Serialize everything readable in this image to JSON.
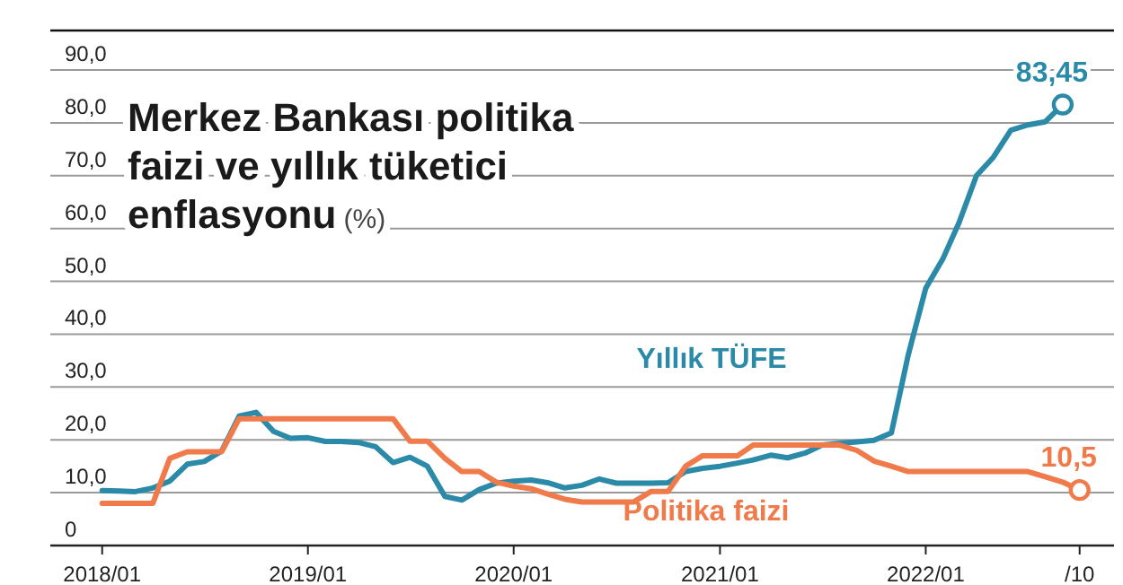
{
  "chart_data": {
    "type": "line",
    "title": "Merkez Bankası politika faizi ve yıllık tüketici enflasyonu",
    "subtitle": "(%)",
    "x": [
      "2018-01",
      "2018-02",
      "2018-03",
      "2018-04",
      "2018-05",
      "2018-06",
      "2018-07",
      "2018-08",
      "2018-09",
      "2018-10",
      "2018-11",
      "2018-12",
      "2019-01",
      "2019-02",
      "2019-03",
      "2019-04",
      "2019-05",
      "2019-06",
      "2019-07",
      "2019-08",
      "2019-09",
      "2019-10",
      "2019-11",
      "2019-12",
      "2020-01",
      "2020-02",
      "2020-03",
      "2020-04",
      "2020-05",
      "2020-06",
      "2020-07",
      "2020-08",
      "2020-09",
      "2020-10",
      "2020-11",
      "2020-12",
      "2021-01",
      "2021-02",
      "2021-03",
      "2021-04",
      "2021-05",
      "2021-06",
      "2021-07",
      "2021-08",
      "2021-09",
      "2021-10",
      "2021-11",
      "2021-12",
      "2022-01",
      "2022-02",
      "2022-03",
      "2022-04",
      "2022-05",
      "2022-06",
      "2022-07",
      "2022-08",
      "2022-09",
      "2022-10"
    ],
    "series": [
      {
        "name": "Yıllık TÜFE",
        "color": "#2a8aa8",
        "values": [
          10.4,
          10.3,
          10.2,
          10.9,
          12.2,
          15.4,
          15.9,
          17.9,
          24.5,
          25.2,
          21.6,
          20.3,
          20.4,
          19.7,
          19.7,
          19.5,
          18.7,
          15.7,
          16.7,
          15.0,
          9.3,
          8.6,
          10.6,
          11.8,
          12.2,
          12.4,
          11.9,
          10.9,
          11.4,
          12.6,
          11.8,
          11.8,
          11.8,
          11.9,
          14.0,
          14.6,
          15.0,
          15.6,
          16.2,
          17.1,
          16.6,
          17.5,
          19.0,
          19.3,
          19.6,
          19.9,
          21.3,
          36.1,
          48.7,
          54.4,
          61.1,
          70.0,
          73.5,
          78.6,
          79.6,
          80.2,
          83.45,
          null
        ]
      },
      {
        "name": "Politika faizi",
        "color": "#f07a4a",
        "values": [
          8,
          8,
          8,
          8,
          16.5,
          17.75,
          17.75,
          17.75,
          24,
          24,
          24,
          24,
          24,
          24,
          24,
          24,
          24,
          24,
          19.75,
          19.75,
          16.5,
          14,
          14,
          12,
          11.25,
          10.75,
          9.75,
          8.75,
          8.25,
          8.25,
          8.25,
          8.25,
          10.25,
          10.25,
          15,
          17,
          17,
          17,
          19,
          19,
          19,
          19,
          19,
          19,
          18,
          16,
          15,
          14,
          14,
          14,
          14,
          14,
          14,
          14,
          14,
          13,
          12,
          10.5
        ]
      }
    ],
    "xlim": [
      "2017-10",
      "2022-12"
    ],
    "xticks": [
      {
        "value": "2018-01",
        "label": "2018/01"
      },
      {
        "value": "2019-01",
        "label": "2019/01"
      },
      {
        "value": "2020-01",
        "label": "2020/01"
      },
      {
        "value": "2021-01",
        "label": "2021/01"
      },
      {
        "value": "2022-01",
        "label": "2022/01"
      },
      {
        "value": "2022-10",
        "label": "/10"
      }
    ],
    "ylim": [
      0,
      90
    ],
    "yticks": [
      0,
      {
        "value": 10,
        "label": "10,0"
      },
      {
        "value": 20,
        "label": "20,0"
      },
      {
        "value": 30,
        "label": "30,0"
      },
      {
        "value": 40,
        "label": "40,0"
      },
      {
        "value": 50,
        "label": "50,0"
      },
      {
        "value": 60,
        "label": "60,0"
      },
      {
        "value": 70,
        "label": "70,0"
      },
      {
        "value": 80,
        "label": "80,0"
      },
      {
        "value": 90,
        "label": "90,0"
      }
    ],
    "grid": "y",
    "line_style": "solid",
    "annotations": [
      {
        "text": "83,45",
        "x": "2022-09",
        "y": 83.45
      },
      {
        "text": "10,5",
        "x": "2022-10",
        "y": 10.5
      }
    ]
  }
}
